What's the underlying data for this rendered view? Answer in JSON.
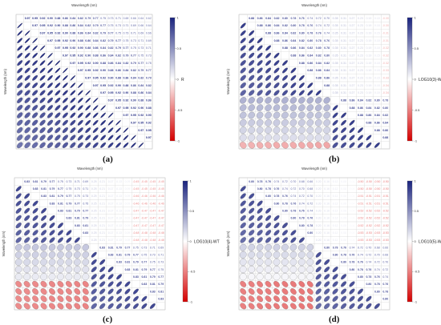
{
  "figure": {
    "panel_letters": [
      "(a)",
      "(b)",
      "(c)",
      "(d)"
    ]
  },
  "chart_data": [
    {
      "type": "heatmap",
      "id": "a",
      "xlabel": "Wavelength (nm)",
      "ylabel": "Wavelength (nm)",
      "colorbar_label": "R",
      "colorbar_ticks": [
        "1",
        "0.5",
        "0",
        "-0.5",
        "-1"
      ],
      "colorbar_range": [
        -1,
        1
      ],
      "colors": {
        "positive": "#1a237e",
        "neutral": "#ffffff",
        "negative": "#d50000"
      },
      "display": "upper-triangle-values, lower-triangle-ellipses",
      "n_bands": 18,
      "correlation_profile": {
        "near_diagonal": 0.99,
        "far_off_diagonal": 0.62,
        "sign": "positive"
      }
    },
    {
      "type": "heatmap",
      "id": "b",
      "xlabel": "Wavelength (nm)",
      "ylabel": "Wavelength (nm)",
      "colorbar_label": "LOG10(3)-WT",
      "colorbar_ticks": [
        "1",
        "0.5",
        "0",
        "-0.5",
        "-1"
      ],
      "colorbar_range": [
        -1,
        1
      ],
      "colors": {
        "positive": "#1a237e",
        "neutral": "#ffffff",
        "negative": "#d50000"
      },
      "display": "upper-triangle-values, lower-triangle-ellipses",
      "n_bands": 18,
      "correlation_profile": {
        "block_split_band": 11,
        "within_block": 0.9,
        "cross_block": 0.35,
        "last_band_cross": -0.3
      }
    },
    {
      "type": "heatmap",
      "id": "c",
      "xlabel": "Wavelength (nm)",
      "ylabel": "Wavelength (nm)",
      "colorbar_label": "LOG10(4)-WT",
      "colorbar_ticks": [
        "1",
        "0.5",
        "0",
        "-0.5",
        "-1"
      ],
      "colorbar_range": [
        -1,
        1
      ],
      "colors": {
        "positive": "#1a237e",
        "neutral": "#ffffff",
        "negative": "#d50000"
      },
      "display": "upper-triangle-values, lower-triangle-ellipses",
      "n_bands": 18,
      "correlation_profile": {
        "block_split_band": 9,
        "within_block": 0.85,
        "cross_block": 0.25,
        "last_bands_cross": -0.45
      }
    },
    {
      "type": "heatmap",
      "id": "d",
      "xlabel": "Wavelength (nm)",
      "ylabel": "Wavelength (nm)",
      "colorbar_label": "LOG10(5)-WT",
      "colorbar_ticks": [
        "1",
        "0.5",
        "0",
        "-0.5",
        "-1"
      ],
      "colorbar_range": [
        -1,
        1
      ],
      "colors": {
        "positive": "#1a237e",
        "neutral": "#ffffff",
        "negative": "#d50000"
      },
      "display": "upper-triangle-values, lower-triangle-ellipses",
      "n_bands": 18,
      "correlation_profile": {
        "block_split_band": 9,
        "within_block": 0.82,
        "cross_block": 0.2,
        "last_bands_cross": -0.5
      }
    }
  ]
}
